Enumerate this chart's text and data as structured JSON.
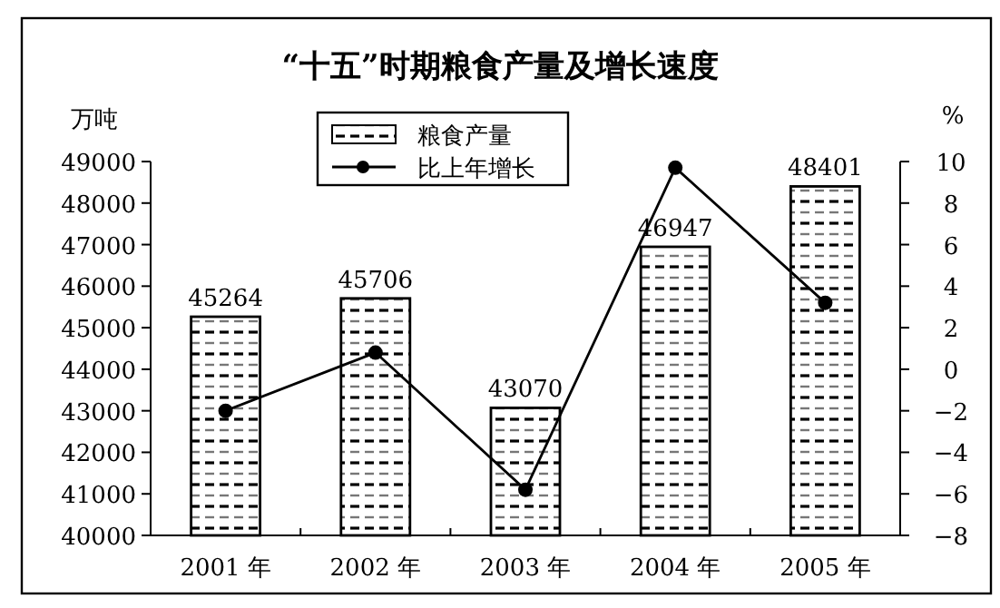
{
  "chart_data": {
    "type": "bar",
    "title": "“十五”时期粮食产量及增长速度",
    "ylabel": "万吨",
    "y2label": "%",
    "categories": [
      "2001 年",
      "2002 年",
      "2003 年",
      "2004 年",
      "2005 年"
    ],
    "series": [
      {
        "name": "粮食产量",
        "color": "#000000",
        "values": [
          45264,
          45706,
          43070,
          46947,
          48401
        ],
        "value_labels": [
          "45264",
          "45706",
          "43070",
          "46947",
          "48401"
        ]
      },
      {
        "name": "比上年增长",
        "type": "line",
        "axis": "y2",
        "color": "#000000",
        "marker": "circle",
        "values": [
          -2.0,
          0.8,
          -5.8,
          9.7,
          3.2
        ]
      }
    ],
    "ylim": [
      40000,
      49000
    ],
    "yticks": [
      40000,
      41000,
      42000,
      43000,
      44000,
      45000,
      46000,
      47000,
      48000,
      49000
    ],
    "y2lim": [
      -8,
      10
    ],
    "y2ticks": [
      -8,
      -6,
      -4,
      -2,
      0,
      2,
      4,
      6,
      8,
      10
    ],
    "legend": "top"
  }
}
